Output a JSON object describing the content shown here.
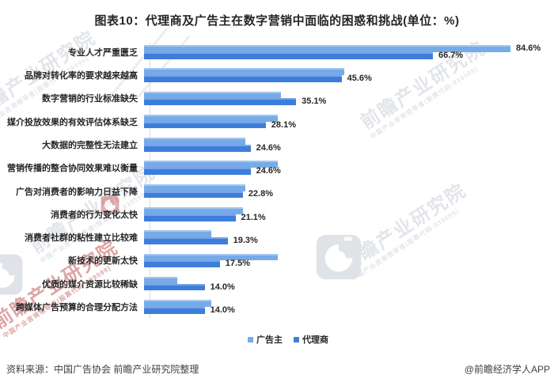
{
  "title": "图表10：代理商及广告主在数字营销中面临的困惑和挑战(单位：%)",
  "footer": {
    "source": "资料来源：中国广告协会 前瞻产业研究院整理",
    "brand": "@前瞻经济学人APP"
  },
  "watermark": {
    "brand_text": "前瞻产业研究院",
    "sub_text": "中国产业咨询领导者(股票代码:839599)",
    "gray_color": "#ccd1d8",
    "red_color": "#bf4a4a"
  },
  "chart_data": {
    "type": "bar",
    "orientation": "horizontal",
    "unit": "%",
    "xlim": [
      0,
      92
    ],
    "grid": false,
    "legend_position": "bottom",
    "value_label_color": "#262626",
    "categories": [
      "专业人才严重匮乏",
      "品牌对转化率的要求越来越高",
      "数字营销的行业标准缺失",
      "媒介投放效果的有效评估体系缺乏",
      "大数据的完整性无法建立",
      "营销传播的整合协同效果难以衡量",
      "广告对消费者的影响力日益下降",
      "消费者的行为变化太快",
      "消费者社群的粘性建立比较难",
      "新技术的更新太快",
      "优质的媒介资源比较稀缺",
      "跨媒体广告预算的合理分配方法"
    ],
    "series": [
      {
        "id": "advertiser",
        "name": "广告主",
        "color": "#77abe8",
        "highlight": "#a3c6f1",
        "values": [
          84.6,
          46.2,
          31.6,
          30.9,
          23.3,
          30.9,
          23.3,
          22.8,
          15.5,
          30.9,
          7.7,
          15.5
        ],
        "labels": [
          "84.6%",
          "",
          "",
          "",
          "",
          "",
          "",
          "",
          "",
          "",
          "",
          ""
        ]
      },
      {
        "id": "agency",
        "name": "代理商",
        "color": "#3e7edb",
        "highlight": "#76a3e8",
        "values": [
          66.7,
          45.6,
          35.1,
          28.1,
          24.6,
          24.6,
          22.8,
          21.1,
          19.3,
          17.5,
          14.0,
          14.0
        ],
        "labels": [
          "66.7%",
          "45.6%",
          "35.1%",
          "28.1%",
          "24.6%",
          "24.6%",
          "22.8%",
          "21.1%",
          "19.3%",
          "17.5%",
          "14.0%",
          "14.0%"
        ]
      }
    ]
  }
}
